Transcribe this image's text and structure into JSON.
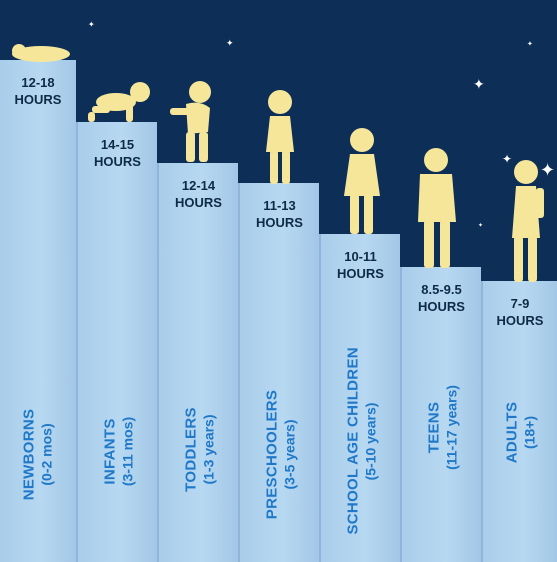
{
  "columns": [
    {
      "hours_line1": "12-18",
      "hours_line2": "HOURS",
      "group": "NEWBORNS",
      "ages": "(0-2 mos)"
    },
    {
      "hours_line1": "14-15",
      "hours_line2": "HOURS",
      "group": "INFANTS",
      "ages": "(3-11 mos)"
    },
    {
      "hours_line1": "12-14",
      "hours_line2": "HOURS",
      "group": "TODDLERS",
      "ages": "(1-3 years)"
    },
    {
      "hours_line1": "11-13",
      "hours_line2": "HOURS",
      "group": "PRESCHOOLERS",
      "ages": "(3-5 years)"
    },
    {
      "hours_line1": "10-11",
      "hours_line2": "HOURS",
      "group": "SCHOOL AGE CHILDREN",
      "ages": "(5-10 years)"
    },
    {
      "hours_line1": "8.5-9.5",
      "hours_line2": "HOURS",
      "group": "TEENS",
      "ages": "(11-17 years)"
    },
    {
      "hours_line1": "7-9",
      "hours_line2": "HOURS",
      "group": "ADULTS",
      "ages": "(18+)"
    }
  ],
  "colors": {
    "night_sky": "#0d2f57",
    "column": "#b7d8f1",
    "hours_text": "#0d2a47",
    "label_text": "#1f78c8",
    "silhouette": "#f6e69a"
  },
  "icons": [
    "baby-sleeping-icon",
    "crawling-infant-icon",
    "toddler-icon",
    "preschooler-icon",
    "school-child-icon",
    "teen-icon",
    "adult-icon",
    "star-icon"
  ]
}
